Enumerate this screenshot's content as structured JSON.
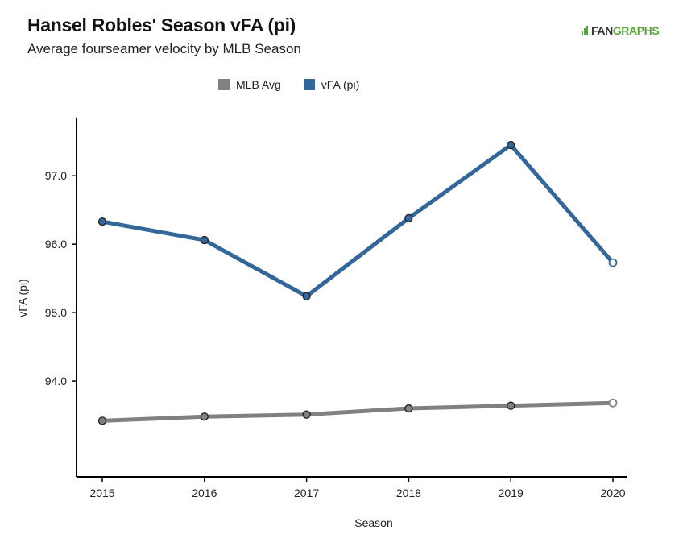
{
  "header": {
    "title": "Hansel Robles' Season vFA (pi)",
    "subtitle": "Average fourseamer velocity by MLB Season",
    "brand": "FANGRAPHS",
    "brand_prefix": "FAN",
    "brand_suffix": "GRAPHS"
  },
  "colors": {
    "player": "#336699",
    "league": "#808080",
    "brand": "#5aa43b"
  },
  "chart_data": {
    "type": "line",
    "title": "Hansel Robles' Season vFA (pi)",
    "subtitle": "Average fourseamer velocity by MLB Season",
    "xlabel": "Season",
    "ylabel": "vFA (pi)",
    "x": [
      2015,
      2016,
      2017,
      2018,
      2019,
      2020
    ],
    "x_tick_labels": [
      "2015",
      "2016",
      "2017",
      "2018",
      "2019",
      "2020"
    ],
    "y_ticks": [
      94.0,
      95.0,
      96.0,
      97.0
    ],
    "y_tick_labels": [
      "94.0",
      "95.0",
      "96.0",
      "97.0"
    ],
    "ylim": [
      92.6,
      97.85
    ],
    "grid": false,
    "legend_position": "top",
    "series": [
      {
        "name": "MLB Avg",
        "color": "#808080",
        "values": [
          93.42,
          93.48,
          93.51,
          93.6,
          93.64,
          93.68
        ],
        "last_point_hollow": true
      },
      {
        "name": "vFA (pi)",
        "color": "#336699",
        "values": [
          96.33,
          96.06,
          95.24,
          96.38,
          97.45,
          95.73
        ],
        "last_point_hollow": true
      }
    ]
  }
}
